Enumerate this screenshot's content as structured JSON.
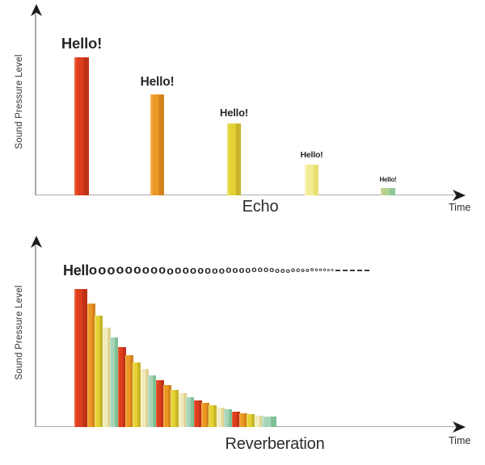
{
  "figure": {
    "background": "#ffffff",
    "text_color": "#2d2d2d",
    "axis_line_color": "#ababab",
    "arrow_color": "#1c1c1c"
  },
  "palette": {
    "red": {
      "light": "#ee6a42",
      "main": "#dc3e1e",
      "dark": "#c03218"
    },
    "orange": {
      "light": "#f4b85e",
      "main": "#eb9723",
      "dark": "#d3821c"
    },
    "yellow": {
      "light": "#efe277",
      "main": "#e4d234",
      "dark": "#c9b52a"
    },
    "pale_yellow": {
      "light": "#faf7c8",
      "main": "#f3ec94",
      "dark": "#e9df6f"
    },
    "green": {
      "light": "#ced98d",
      "main": "#b3d190",
      "dark": "#8fc795"
    },
    "cream": {
      "light": "#faf6d6",
      "main": "#f1ebbc",
      "dark": "#ddd392"
    },
    "teal": {
      "light": "#c8e3d1",
      "main": "#a6d4b6",
      "dark": "#7ec095"
    }
  },
  "chart_data": [
    {
      "type": "bar",
      "panel": "echo",
      "title": "Echo",
      "xlabel": "Time",
      "ylabel": "Sound Pressure Level",
      "bar_labels": [
        "Hello!",
        "Hello!",
        "Hello!",
        "Hello!",
        "Hello!"
      ],
      "values": [
        100,
        73,
        52,
        22,
        5
      ],
      "colors": [
        "red",
        "orange",
        "yellow",
        "pale_yellow",
        "green"
      ],
      "ylim": [
        0,
        115
      ],
      "axes": "arrow axes, no ticks, no gridlines",
      "note": "five separated bars, each quieter repeat of Hello!"
    },
    {
      "type": "bar",
      "panel": "reverberation",
      "title": "Reverberation",
      "xlabel": "Time",
      "ylabel": "Sound Pressure Level",
      "annotation_parts": {
        "prefix": "Hell",
        "o_count": 38,
        "dash_count": 5
      },
      "values": [
        100,
        89.7,
        80.5,
        72.2,
        64.7,
        58.1,
        52.1,
        46.7,
        41.9,
        37.6,
        33.7,
        30.2,
        27.1,
        24.3,
        21.8,
        19.6,
        17.6,
        15.8,
        14.1,
        12.7,
        11.4,
        10.2,
        9.2,
        8.2,
        7.4
      ],
      "colors": [
        "red",
        "orange",
        "yellow",
        "cream",
        "teal",
        "red",
        "orange",
        "yellow",
        "cream",
        "teal",
        "red",
        "orange",
        "yellow",
        "cream",
        "teal",
        "red",
        "orange",
        "yellow",
        "cream",
        "teal",
        "red",
        "orange",
        "yellow",
        "cream",
        "teal"
      ],
      "ylim": [
        0,
        115
      ],
      "axes": "arrow axes, no ticks, no gridlines",
      "note": "continuous wall of decaying bars, one smeared Helloooo..."
    }
  ]
}
